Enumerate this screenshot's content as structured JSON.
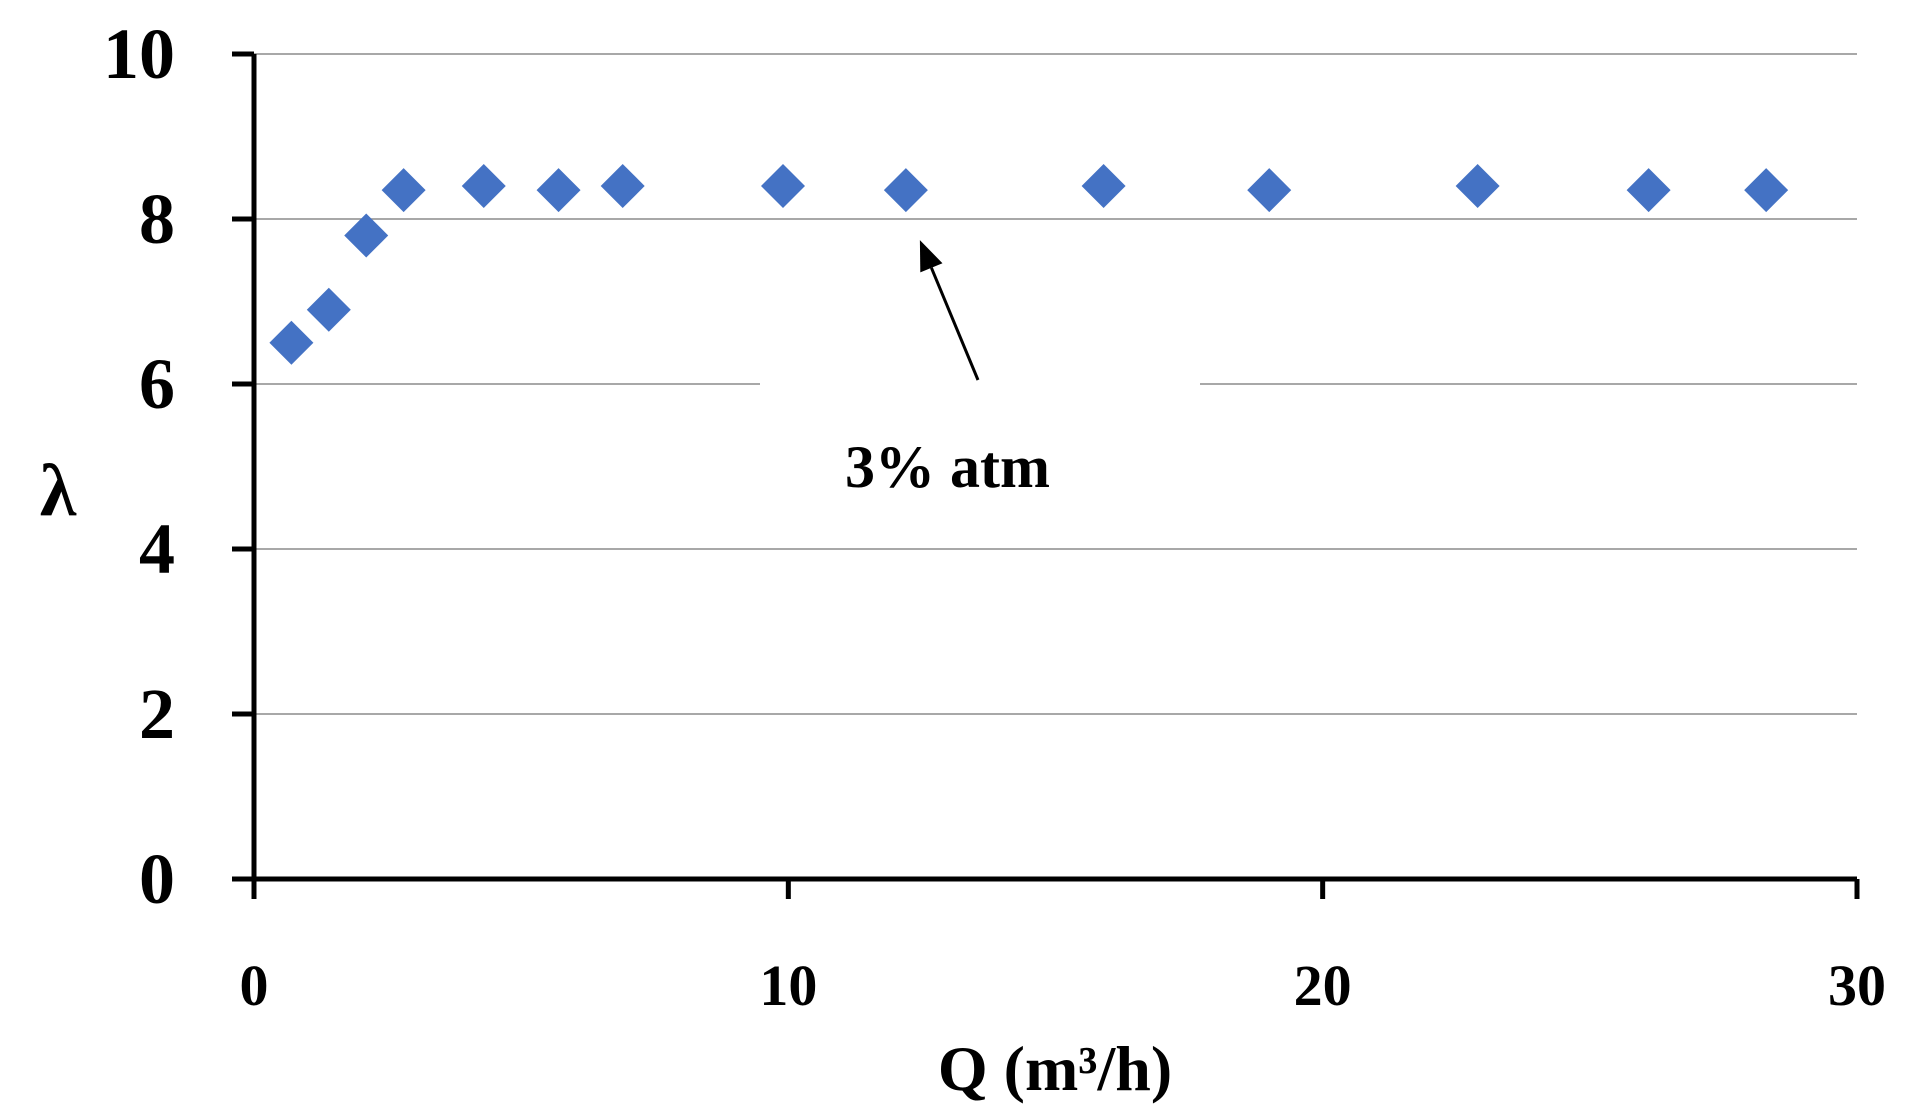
{
  "chart_data": {
    "type": "scatter",
    "title": "",
    "xlabel": "Q (m³/h)",
    "ylabel": "λ",
    "xlim": [
      0,
      30
    ],
    "ylim": [
      0,
      10
    ],
    "xticks": [
      "0",
      "10",
      "20",
      "30"
    ],
    "yticks": [
      "0",
      "2",
      "4",
      "6",
      "8",
      "10"
    ],
    "grid": "horizontal",
    "legend": "none",
    "marker": "diamond",
    "series": [
      {
        "color": "#4472C4",
        "points": [
          {
            "x": 0.7,
            "y": 6.5
          },
          {
            "x": 1.4,
            "y": 6.9
          },
          {
            "x": 2.1,
            "y": 7.8
          },
          {
            "x": 2.8,
            "y": 8.35
          },
          {
            "x": 4.3,
            "y": 8.4
          },
          {
            "x": 5.7,
            "y": 8.35
          },
          {
            "x": 6.9,
            "y": 8.4
          },
          {
            "x": 9.9,
            "y": 8.4
          },
          {
            "x": 12.2,
            "y": 8.35
          },
          {
            "x": 15.9,
            "y": 8.4
          },
          {
            "x": 19.0,
            "y": 8.35
          },
          {
            "x": 22.9,
            "y": 8.4
          },
          {
            "x": 26.1,
            "y": 8.35
          },
          {
            "x": 28.3,
            "y": 8.35
          }
        ]
      }
    ],
    "annotations": [
      {
        "text": "3% atm",
        "points_to": {
          "x": 12.2,
          "y": 8.35
        }
      }
    ]
  }
}
